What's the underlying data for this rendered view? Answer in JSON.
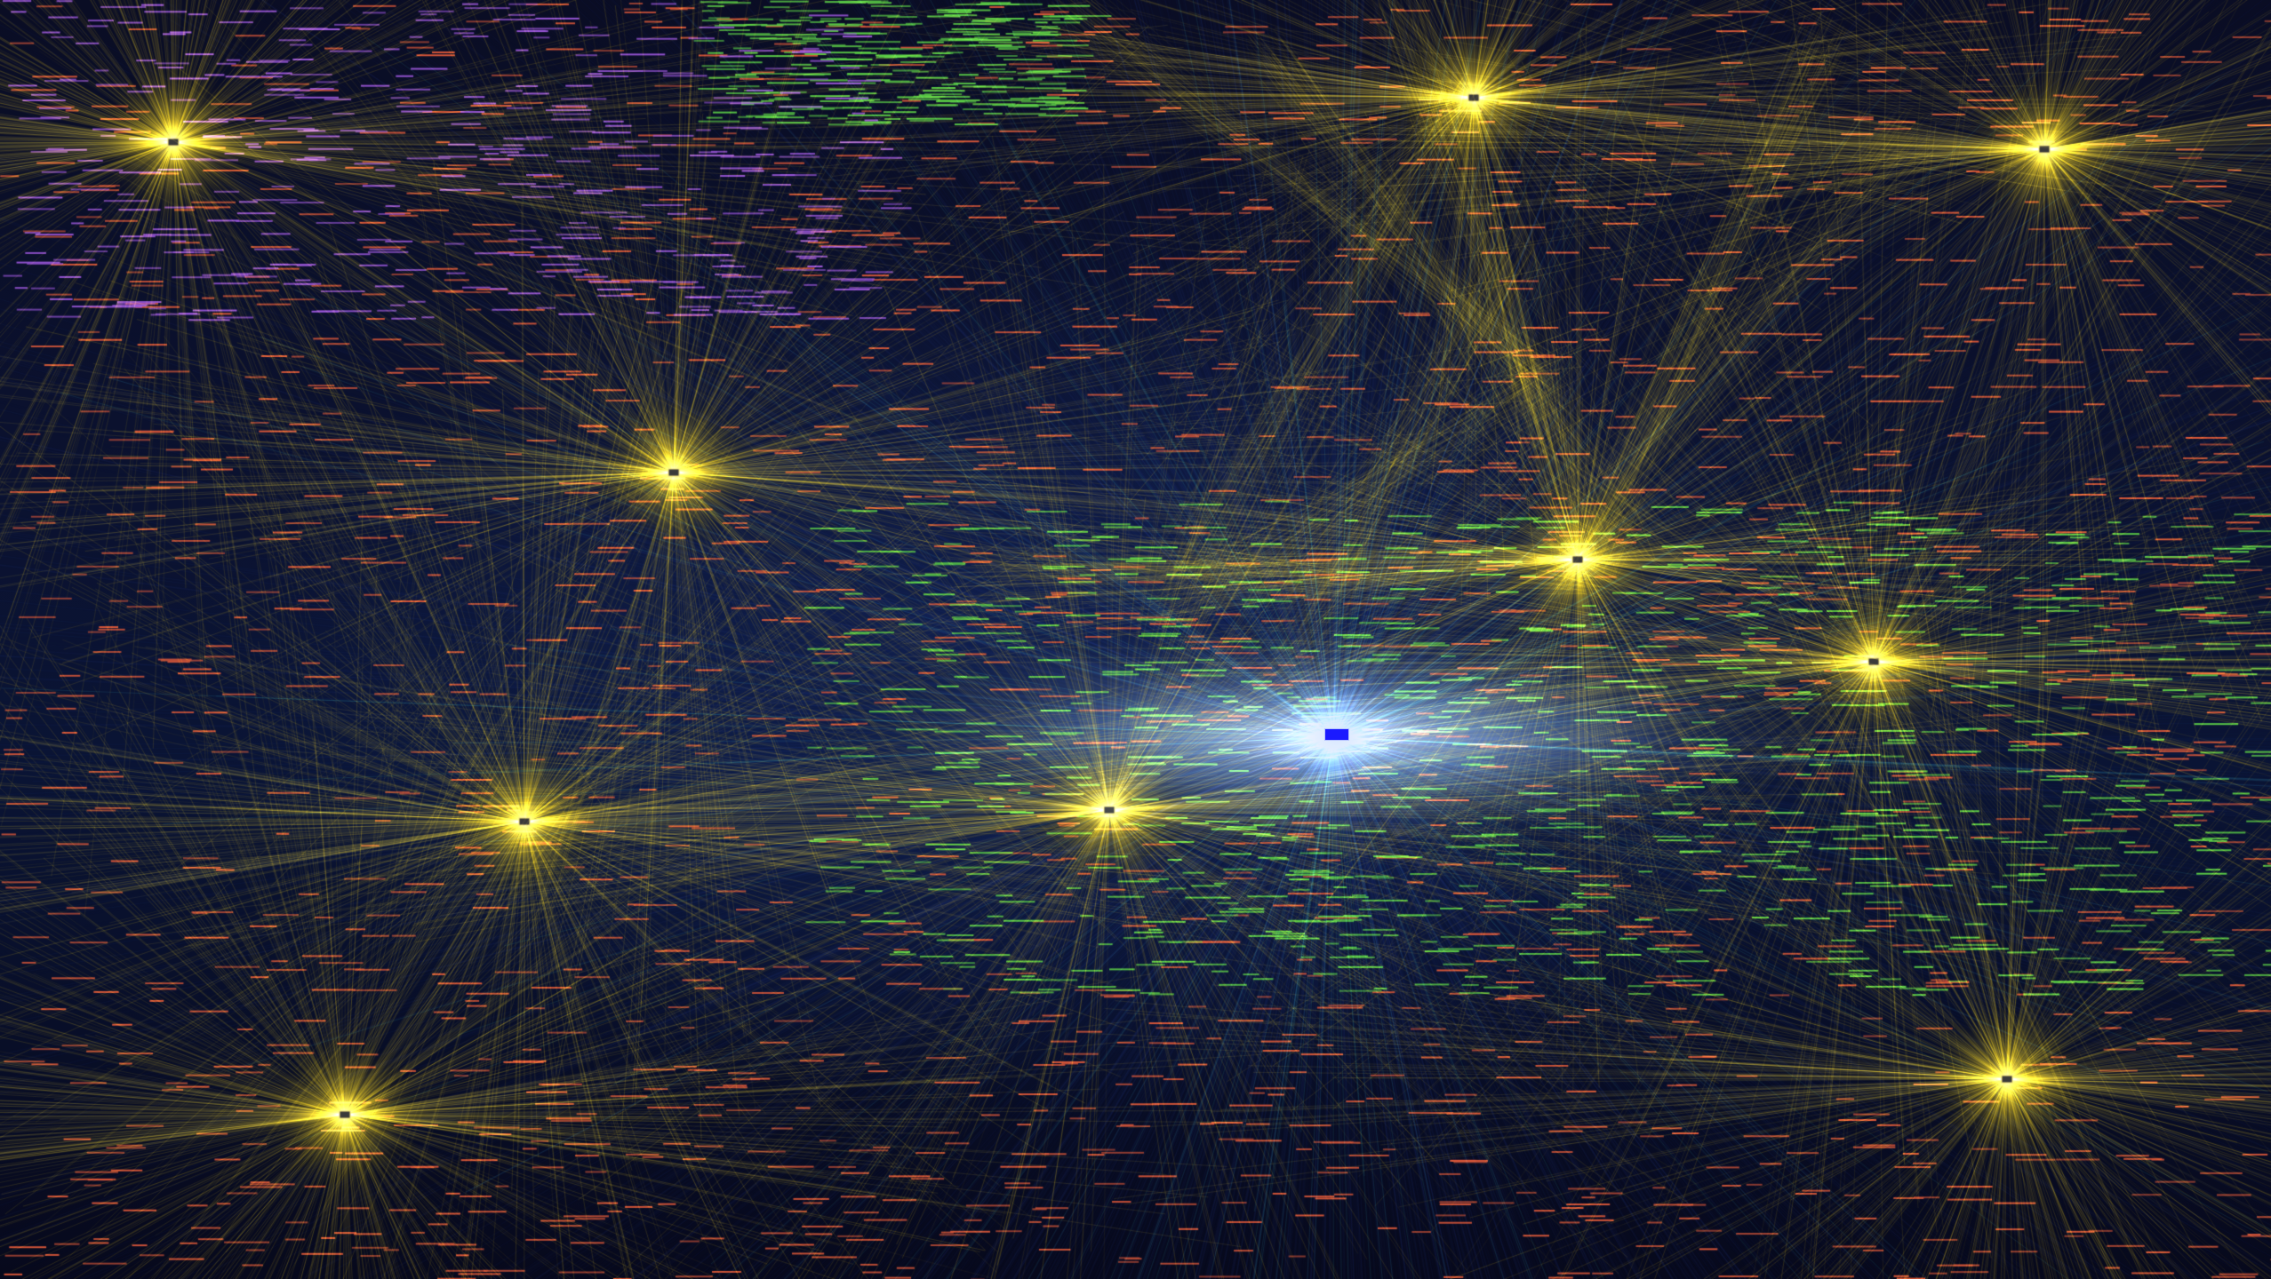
{
  "colors": {
    "background": "#05081a",
    "hub_edge": "#e8c81e",
    "hub_core": "#fff06a",
    "label_red": "#e05a3a",
    "label_green": "#5fd448",
    "label_purple": "#a05ae0",
    "edge_blue": "#3a5cd8",
    "edge_cyan": "#39c7d8",
    "center_node": "#1a1aff"
  },
  "hubs": [
    {
      "id": "hub-top-left"
    },
    {
      "id": "hub-mid-left"
    },
    {
      "id": "hub-left-lower"
    },
    {
      "id": "hub-bottom-left"
    },
    {
      "id": "hub-bottom-center"
    },
    {
      "id": "hub-right"
    },
    {
      "id": "hub-top-right"
    },
    {
      "id": "hub-bottom-right"
    },
    {
      "id": "hub-top-center"
    },
    {
      "id": "hub-center-upper"
    }
  ],
  "center_node": {
    "id": "center-node"
  }
}
